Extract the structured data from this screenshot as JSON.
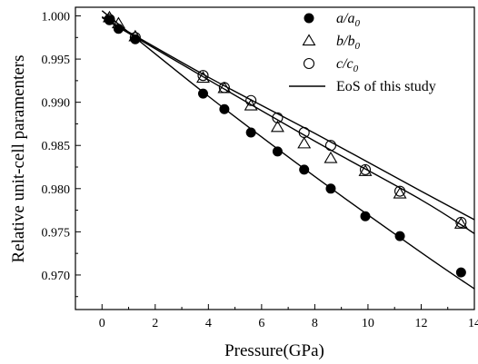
{
  "chart_data": {
    "type": "scatter",
    "xlabel": "Pressure(GPa)",
    "ylabel": "Relative unit-cell paramenters",
    "xlim": [
      -1,
      14
    ],
    "ylim": [
      0.966,
      1.001
    ],
    "x_ticks": [
      0,
      2,
      4,
      6,
      8,
      10,
      12,
      14
    ],
    "y_ticks": [
      0.97,
      0.975,
      0.98,
      0.985,
      0.99,
      0.995,
      1.0
    ],
    "x_tick_labels": [
      "0",
      "2",
      "4",
      "6",
      "8",
      "10",
      "12",
      "14"
    ],
    "y_tick_labels": [
      "0.970",
      "0.975",
      "0.980",
      "0.985",
      "0.990",
      "0.995",
      "1.000"
    ],
    "grid": false,
    "legend_position": "top-right",
    "series": [
      {
        "name_parts": [
          "a/a",
          "0"
        ],
        "marker": "filled-circle",
        "x": [
          0.28,
          0.62,
          1.25,
          3.8,
          4.6,
          5.6,
          6.6,
          7.6,
          8.6,
          9.9,
          11.2,
          13.5
        ],
        "y": [
          0.9995,
          0.9985,
          0.9973,
          0.991,
          0.9892,
          0.9865,
          0.9843,
          0.9822,
          0.98,
          0.9768,
          0.9745,
          0.9703
        ],
        "fit": {
          "x": [
            0,
            4,
            8,
            12,
            14
          ],
          "y": [
            1.0006,
            0.9907,
            0.9814,
            0.9726,
            0.9684
          ]
        }
      },
      {
        "name_parts": [
          "b/b",
          "0"
        ],
        "marker": "open-triangle",
        "x": [
          0.28,
          0.62,
          1.25,
          3.8,
          4.6,
          5.6,
          6.6,
          7.6,
          8.6,
          9.9,
          11.2,
          13.5
        ],
        "y": [
          0.9998,
          0.9991,
          0.9976,
          0.9928,
          0.9916,
          0.9896,
          0.9871,
          0.9852,
          0.9835,
          0.982,
          0.9794,
          0.9759
        ],
        "fit": {
          "x": [
            0,
            4,
            8,
            12,
            14
          ],
          "y": [
            0.9998,
            0.9926,
            0.9855,
            0.9787,
            0.9748
          ]
        }
      },
      {
        "name_parts": [
          "c/c",
          "0"
        ],
        "marker": "open-circle",
        "x": [
          0.28,
          1.25,
          3.8,
          4.6,
          5.6,
          6.6,
          7.6,
          8.6,
          9.9,
          11.2,
          13.5
        ],
        "y": [
          0.9996,
          0.9975,
          0.9931,
          0.9917,
          0.9902,
          0.9882,
          0.9865,
          0.985,
          0.9822,
          0.9797,
          0.9761
        ],
        "fit": {
          "x": [
            0,
            4,
            8,
            12,
            14
          ],
          "y": [
            0.9999,
            0.9929,
            0.9864,
            0.9797,
            0.9764
          ]
        }
      }
    ],
    "fit_legend": "EoS of this study"
  }
}
